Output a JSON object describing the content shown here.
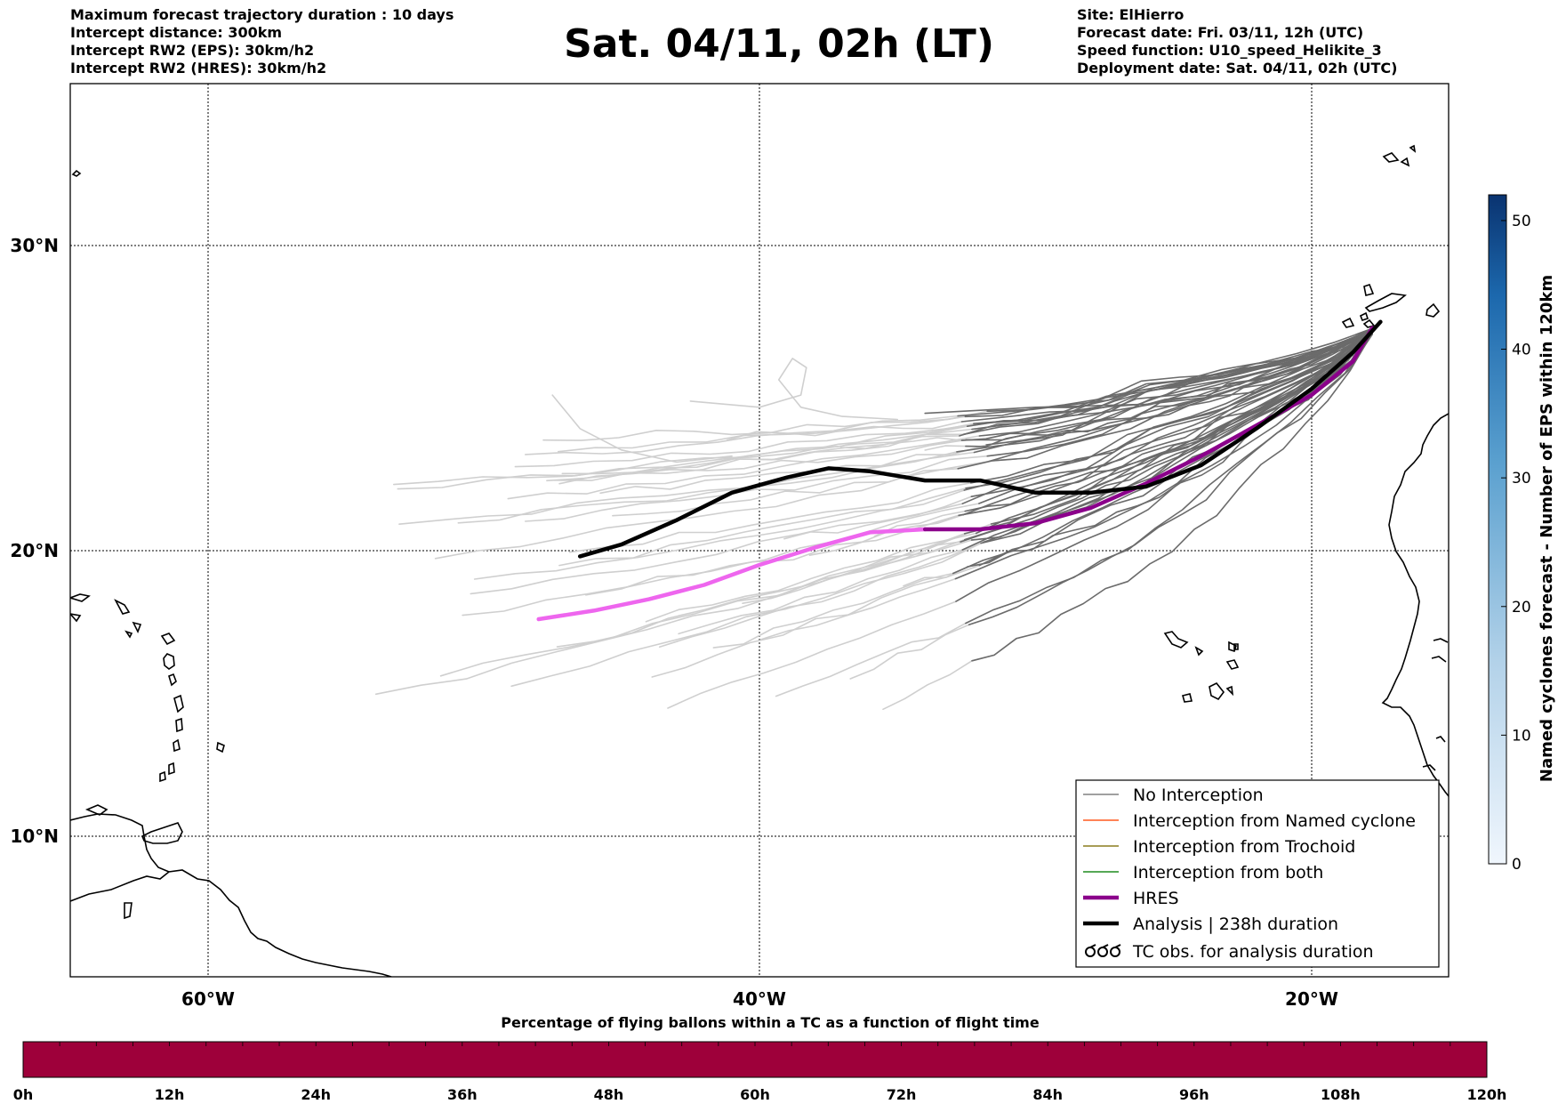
{
  "header": {
    "left_lines": [
      "Maximum forecast trajectory duration : 10 days",
      "Intercept distance: 300km",
      "Intercept RW2 (EPS):  30km/h2",
      "Intercept RW2 (HRES): 30km/h2"
    ],
    "title": "Sat. 04/11, 02h (LT)",
    "right_lines": [
      "Site: ElHierro",
      "Forecast date: Fri. 03/11, 12h (UTC)",
      "Speed function: U10_speed_Helikite_3",
      "Deployment date: Sat. 04/11, 02h (UTC)"
    ]
  },
  "map": {
    "lon_ticks": [
      "60°W",
      "40°W",
      "20°W"
    ],
    "lat_ticks": [
      "30°N",
      "20°N",
      "10°N"
    ],
    "extent": {
      "lon": [
        -65,
        -15
      ],
      "lat": [
        5.5,
        34.8
      ]
    }
  },
  "legend": {
    "items": [
      {
        "label": "No Interception",
        "color": "#808080",
        "kind": "thin"
      },
      {
        "label": "Interception from Named cyclone",
        "color": "#ff5a1e",
        "kind": "thin"
      },
      {
        "label": "Interception from Trochoid",
        "color": "#8c7d1e",
        "kind": "thin"
      },
      {
        "label": "Interception from both",
        "color": "#1e8c1e",
        "kind": "thin"
      },
      {
        "label": "HRES",
        "color": "#8b008b",
        "kind": "thick"
      },
      {
        "label": "Analysis | 238h duration",
        "color": "#000000",
        "kind": "thick"
      },
      {
        "label": "TC obs. for analysis duration",
        "color": "#000000",
        "kind": "symbol"
      }
    ]
  },
  "colorbar_right": {
    "label": "Named cyclones forecast - Number of EPS within 120km",
    "ticks": [
      "0",
      "10",
      "20",
      "30",
      "40",
      "50"
    ],
    "max": 52
  },
  "colorbar_bottom": {
    "title": "Percentage of flying ballons within a TC as a function of flight time",
    "ticks": [
      "0h",
      "12h",
      "24h",
      "36h",
      "48h",
      "60h",
      "72h",
      "84h",
      "96h",
      "108h",
      "120h"
    ],
    "fill_color": "#9e003a"
  },
  "chart_data": {
    "type": "trajectory_map",
    "site": "ElHierro",
    "series": [
      {
        "name": "Analysis",
        "lonlat": [
          [
            -17.5,
            27.5
          ],
          [
            -18.5,
            26.5
          ],
          [
            -20,
            25.3
          ],
          [
            -22,
            24
          ],
          [
            -24,
            22.8
          ],
          [
            -26,
            22.1
          ],
          [
            -28,
            21.9
          ],
          [
            -30,
            21.9
          ],
          [
            -32,
            22.3
          ],
          [
            -34,
            22.3
          ],
          [
            -36,
            22.6
          ],
          [
            -37.5,
            22.7
          ],
          [
            -39,
            22.4
          ],
          [
            -41,
            21.9
          ],
          [
            -43,
            21
          ],
          [
            -45,
            20.2
          ],
          [
            -46.5,
            19.8
          ]
        ]
      },
      {
        "name": "HRES",
        "lonlat": [
          [
            -17.8,
            27.3
          ],
          [
            -18.5,
            26.2
          ],
          [
            -20,
            25.1
          ],
          [
            -22,
            24.1
          ],
          [
            -24,
            23.1
          ],
          [
            -26,
            22.2
          ],
          [
            -28,
            21.4
          ],
          [
            -30,
            20.9
          ],
          [
            -32,
            20.7
          ],
          [
            -34,
            20.7
          ],
          [
            -36,
            20.6
          ],
          [
            -38,
            20.1
          ],
          [
            -40,
            19.5
          ],
          [
            -42,
            18.8
          ],
          [
            -44,
            18.3
          ],
          [
            -46,
            17.9
          ],
          [
            -48,
            17.6
          ]
        ]
      }
    ]
  }
}
